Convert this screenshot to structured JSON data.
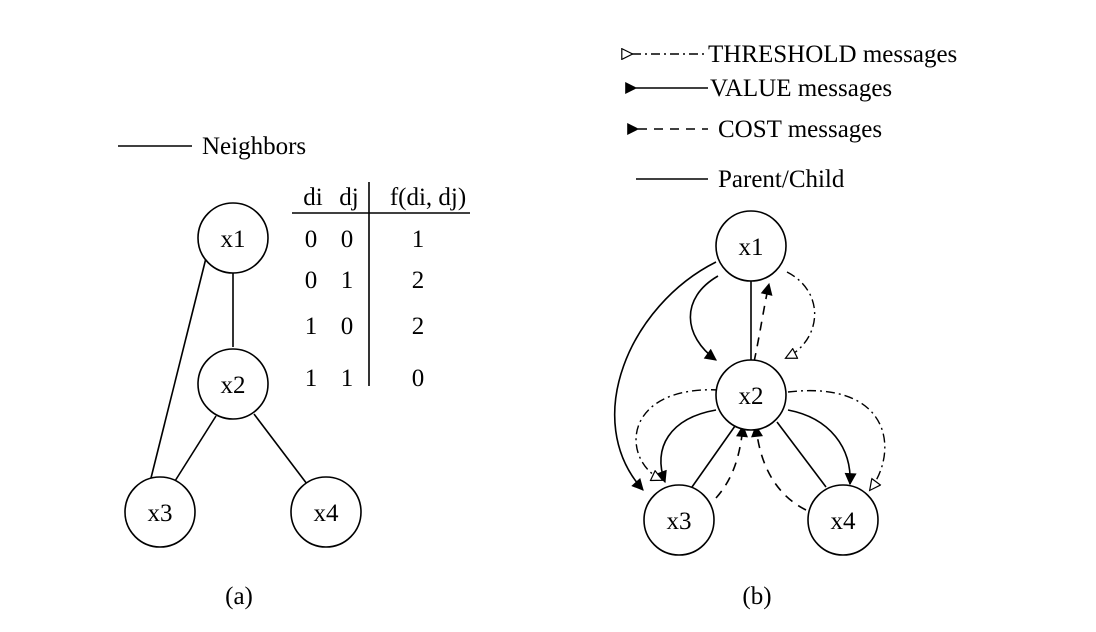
{
  "panel_a": {
    "legend": {
      "neighbors": "Neighbors"
    },
    "nodes": {
      "x1": "x1",
      "x2": "x2",
      "x3": "x3",
      "x4": "x4"
    },
    "table": {
      "headers": [
        "di",
        "dj",
        "f(di, dj)"
      ],
      "rows": [
        [
          "0",
          "0",
          "1"
        ],
        [
          "0",
          "1",
          "2"
        ],
        [
          "1",
          "0",
          "2"
        ],
        [
          "1",
          "1",
          "0"
        ]
      ]
    },
    "caption": "(a)"
  },
  "panel_b": {
    "legend": {
      "threshold": "THRESHOLD messages",
      "value": "VALUE messages",
      "cost": "COST messages",
      "parent_child": "Parent/Child"
    },
    "nodes": {
      "x1": "x1",
      "x2": "x2",
      "x3": "x3",
      "x4": "x4"
    },
    "caption": "(b)"
  }
}
